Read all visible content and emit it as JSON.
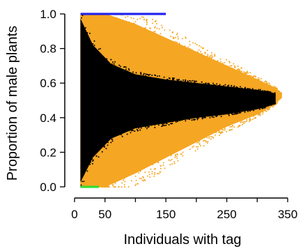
{
  "chart_data": {
    "type": "scatter",
    "xlabel": "Individuals with tag",
    "ylabel": "Proportion of male plants",
    "xlim": [
      0,
      350
    ],
    "ylim": [
      0,
      1
    ],
    "xticks": [
      0,
      50,
      150,
      250,
      350
    ],
    "xtick_labels": [
      "0",
      "50",
      "150",
      "250",
      "350"
    ],
    "xticks_minor": [
      100,
      200,
      300
    ],
    "yticks": [
      0.0,
      0.2,
      0.4,
      0.6,
      0.8,
      1.0
    ],
    "ytick_labels": [
      "0.0",
      "0.2",
      "0.4",
      "0.6",
      "0.8",
      "1.0"
    ],
    "grid": false,
    "legend": "none",
    "series": [
      {
        "color": "#f5a623",
        "envelope_upper": [
          [
            10,
            1.0
          ],
          [
            50,
            1.0
          ],
          [
            100,
            0.94
          ],
          [
            150,
            0.86
          ],
          [
            200,
            0.78
          ],
          [
            250,
            0.7
          ],
          [
            300,
            0.62
          ],
          [
            330,
            0.57
          ],
          [
            340,
            0.54
          ]
        ],
        "envelope_lower": [
          [
            10,
            0.0
          ],
          [
            50,
            0.0
          ],
          [
            100,
            0.08
          ],
          [
            150,
            0.17
          ],
          [
            200,
            0.26
          ],
          [
            250,
            0.35
          ],
          [
            300,
            0.42
          ],
          [
            330,
            0.48
          ],
          [
            340,
            0.52
          ]
        ]
      },
      {
        "color": "#000000",
        "envelope_upper": [
          [
            10,
            0.97
          ],
          [
            30,
            0.82
          ],
          [
            60,
            0.71
          ],
          [
            100,
            0.65
          ],
          [
            150,
            0.62
          ],
          [
            200,
            0.6
          ],
          [
            250,
            0.58
          ],
          [
            300,
            0.56
          ],
          [
            330,
            0.54
          ]
        ],
        "envelope_lower": [
          [
            10,
            0.03
          ],
          [
            30,
            0.17
          ],
          [
            60,
            0.28
          ],
          [
            100,
            0.34
          ],
          [
            150,
            0.37
          ],
          [
            200,
            0.4
          ],
          [
            250,
            0.42
          ],
          [
            300,
            0.45
          ],
          [
            330,
            0.48
          ]
        ]
      },
      {
        "color": "#2222ee",
        "x_range": [
          10,
          150
        ],
        "y": 1.0
      },
      {
        "color": "#33dd33",
        "x_range": [
          10,
          40
        ],
        "y": 0.0
      }
    ]
  }
}
